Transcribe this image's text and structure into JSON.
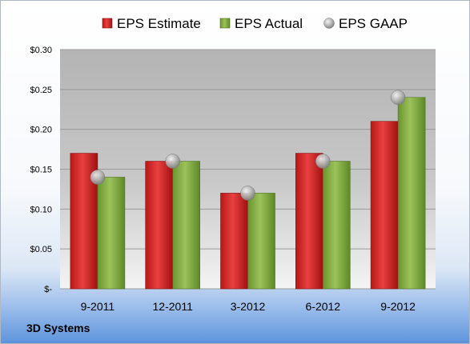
{
  "company": "3D Systems",
  "colors": {
    "estimate": "#c81e1e",
    "actual": "#7aa43c",
    "gaap": "#a8a8a8",
    "grid": "#9a9a9a"
  },
  "chart_data": {
    "type": "bar",
    "categories": [
      "9-2011",
      "12-2011",
      "3-2012",
      "6-2012",
      "9-2012"
    ],
    "series": [
      {
        "name": "EPS Estimate",
        "kind": "bar",
        "values": [
          0.17,
          0.16,
          0.12,
          0.17,
          0.21
        ]
      },
      {
        "name": "EPS Actual",
        "kind": "bar",
        "values": [
          0.14,
          0.16,
          0.12,
          0.16,
          0.24
        ]
      },
      {
        "name": "EPS GAAP",
        "kind": "marker",
        "values": [
          0.14,
          0.16,
          0.12,
          0.16,
          0.24
        ]
      }
    ],
    "ylim": [
      0,
      0.3
    ],
    "yticks": [
      0,
      0.05,
      0.1,
      0.15,
      0.2,
      0.25,
      0.3
    ],
    "ytick_labels": [
      "$-",
      "$0.05",
      "$0.10",
      "$0.15",
      "$0.20",
      "$0.25",
      "$0.30"
    ],
    "grid": true,
    "legend": "top"
  }
}
